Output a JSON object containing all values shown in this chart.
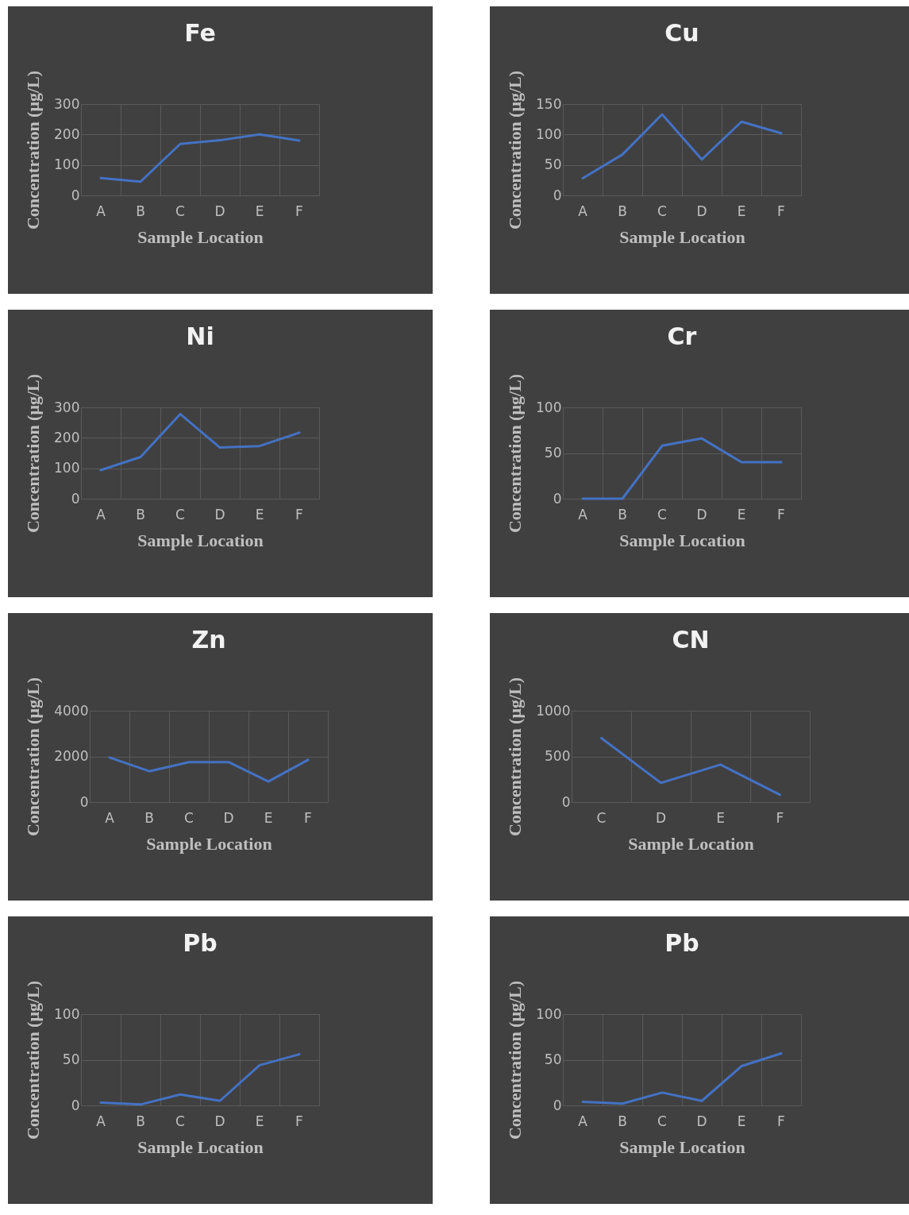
{
  "chart_data": [
    {
      "type": "line",
      "title": "Fe",
      "xlabel": "Sample Location",
      "ylabel": "Concentration (μg/L)",
      "categories": [
        "A",
        "B",
        "C",
        "D",
        "E",
        "F"
      ],
      "values": [
        57,
        45,
        169,
        181,
        200,
        180
      ],
      "color": "#4472c4",
      "ylim": [
        0,
        300
      ],
      "yticks": [
        0,
        100,
        200,
        300
      ],
      "grid": true
    },
    {
      "type": "line",
      "title": "Cu",
      "xlabel": "Sample Location",
      "ylabel": "Concentration (μg/L)",
      "categories": [
        "A",
        "B",
        "C",
        "D",
        "E",
        "F"
      ],
      "values": [
        28,
        67,
        133,
        59,
        121,
        102
      ],
      "color": "#4472c4",
      "ylim": [
        0,
        150
      ],
      "yticks": [
        0,
        50,
        100,
        150
      ],
      "grid": true
    },
    {
      "type": "line",
      "title": "Ni",
      "xlabel": "Sample Location",
      "ylabel": "Concentration (μg/L)",
      "categories": [
        "A",
        "B",
        "C",
        "D",
        "E",
        "F"
      ],
      "values": [
        94,
        137,
        278,
        168,
        173,
        217
      ],
      "color": "#4472c4",
      "ylim": [
        0,
        300
      ],
      "yticks": [
        0,
        100,
        200,
        300
      ],
      "grid": true
    },
    {
      "type": "line",
      "title": "Cr",
      "xlabel": "Sample Location",
      "ylabel": "Concentration (μg/L)",
      "categories": [
        "A",
        "B",
        "C",
        "D",
        "E",
        "F"
      ],
      "values": [
        0,
        0,
        58,
        66,
        40,
        40
      ],
      "color": "#4472c4",
      "ylim": [
        0,
        100
      ],
      "yticks": [
        0,
        50,
        100
      ],
      "grid": true
    },
    {
      "type": "line",
      "title": "Zn",
      "xlabel": "Sample Location",
      "ylabel": "Concentration (μg/L)",
      "categories": [
        "A",
        "B",
        "C",
        "D",
        "E",
        "F"
      ],
      "values": [
        1950,
        1350,
        1750,
        1750,
        900,
        1850
      ],
      "color": "#4472c4",
      "ylim": [
        0,
        4000
      ],
      "yticks": [
        0,
        2000,
        4000
      ],
      "grid": true
    },
    {
      "type": "line",
      "title": "CN",
      "xlabel": "Sample Location",
      "ylabel": "Concentration (μg/L)",
      "categories": [
        "C",
        "D",
        "E",
        "F"
      ],
      "values": [
        700,
        210,
        410,
        80
      ],
      "color": "#4472c4",
      "ylim": [
        0,
        1000
      ],
      "yticks": [
        0,
        500,
        1000
      ],
      "grid": true
    },
    {
      "type": "line",
      "title": "Pb",
      "xlabel": "Sample Location",
      "ylabel": "Concentration (μg/L)",
      "categories": [
        "A",
        "B",
        "C",
        "D",
        "E",
        "F"
      ],
      "values": [
        3,
        1,
        12,
        5,
        44,
        56
      ],
      "color": "#4472c4",
      "ylim": [
        0,
        100
      ],
      "yticks": [
        0,
        50,
        100
      ],
      "grid": true
    },
    {
      "type": "line",
      "title": "Pb",
      "xlabel": "Sample Location",
      "ylabel": "Concentration (μg/L)",
      "categories": [
        "A",
        "B",
        "C",
        "D",
        "E",
        "F"
      ],
      "values": [
        4,
        2,
        14,
        5,
        43,
        57
      ],
      "color": "#4472c4",
      "ylim": [
        0,
        100
      ],
      "yticks": [
        0,
        50,
        100
      ],
      "grid": true
    }
  ]
}
